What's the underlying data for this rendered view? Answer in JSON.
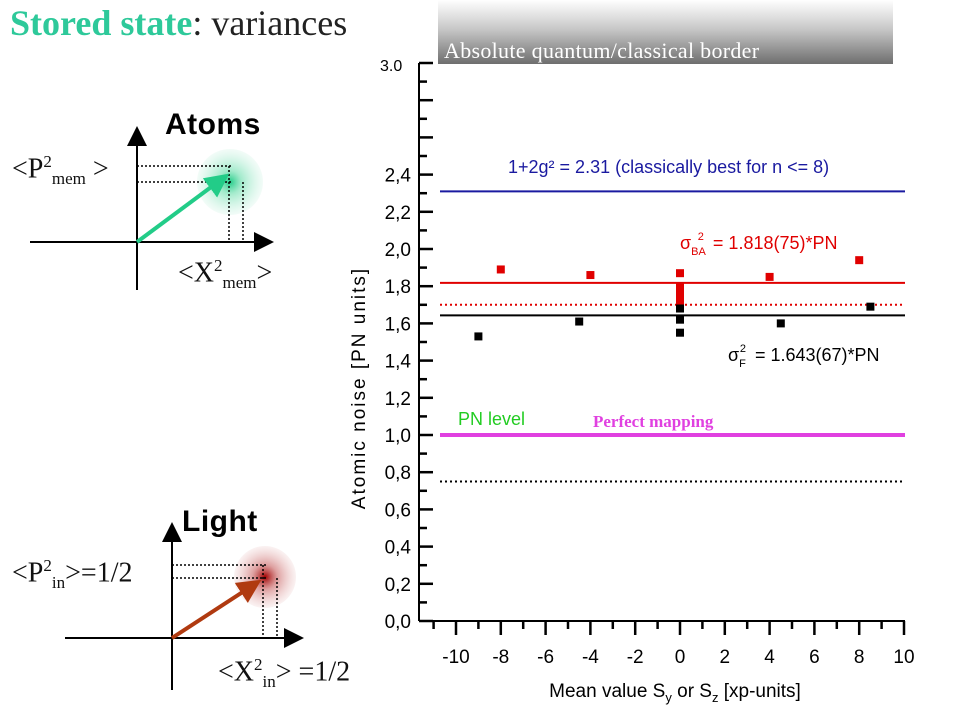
{
  "header": {
    "title_highlight": "Stored state",
    "title_rest": ": variances",
    "banner_text": "Absolute quantum/classical border"
  },
  "atoms": {
    "heading": "Atoms",
    "p_label": "<P",
    "p_sup": "2",
    "p_sub": "mem",
    "p_close": " >",
    "x_label": "<X",
    "x_sup": "2",
    "x_sub": "mem",
    "x_close": ">",
    "arrow_color": "#22cc88"
  },
  "light": {
    "heading": "Light",
    "p_label": "<P",
    "p_sup": "2",
    "p_sub": "in",
    "p_close": ">=1/2",
    "x_label": "<X",
    "x_sup": "2",
    "x_sub": "in",
    "x_close": "> =1/2",
    "arrow_color": "#b03a10"
  },
  "chart_data": {
    "type": "scatter",
    "xlabel": "Mean value S",
    "xlabel_sub1": "y",
    "xlabel_mid": " or S",
    "xlabel_sub2": "z",
    "xlabel_end": " [xp-units]",
    "ylabel": "Atomic noise [PN units]",
    "xlim": [
      -11,
      10
    ],
    "ylim": [
      0,
      3.0
    ],
    "x_ticks": [
      "-10",
      "-8",
      "-6",
      "-4",
      "-2",
      "0",
      "2",
      "4",
      "6",
      "8",
      "10"
    ],
    "y_ticks": [
      "0,0",
      "0,2",
      "0,4",
      "0,6",
      "0,8",
      "1,0",
      "1,2",
      "1,4",
      "1,6",
      "1,8",
      "2,0",
      "2,2",
      "2,4"
    ],
    "y_top_label": "3.0",
    "series": [
      {
        "color": "#e00000",
        "x": [
          -8,
          -4,
          0,
          0,
          0,
          0,
          0,
          4,
          8
        ],
        "y": [
          1.89,
          1.86,
          1.87,
          1.8,
          1.76,
          1.73,
          1.7,
          1.85,
          1.94
        ]
      },
      {
        "color": "#000000",
        "x": [
          -9,
          -4.5,
          0,
          0,
          0,
          4.5,
          8.5
        ],
        "y": [
          1.53,
          1.61,
          1.68,
          1.62,
          1.55,
          1.6,
          1.69
        ]
      }
    ],
    "reference_lines": [
      {
        "y": 2.31,
        "color": "#1a1aa0",
        "label": "1+2g² = 2.31 (classically best for n <= 8)"
      },
      {
        "y": 1.818,
        "color": "#e00000",
        "label": "σ_BA² = 1.818(75)*PN",
        "sigma": "σ",
        "sub": "BA",
        "sup": "2",
        "rest": " = 1.818(75)*PN"
      },
      {
        "y": 1.7,
        "color": "#e00000",
        "style": "dotted"
      },
      {
        "y": 1.643,
        "color": "#000000",
        "label": "σ_F² = 1.643(67)*PN",
        "sigma": "σ",
        "sub": "F",
        "sup": "2",
        "rest": " = 1.643(67)*PN"
      },
      {
        "y": 1.0,
        "color": "#e040e0",
        "label": "PN level",
        "label_color": "#22cc22"
      },
      {
        "y": 0.75,
        "color": "#000000",
        "style": "dotted"
      }
    ],
    "annotations": [
      "Perfect mapping"
    ],
    "grid": false
  }
}
